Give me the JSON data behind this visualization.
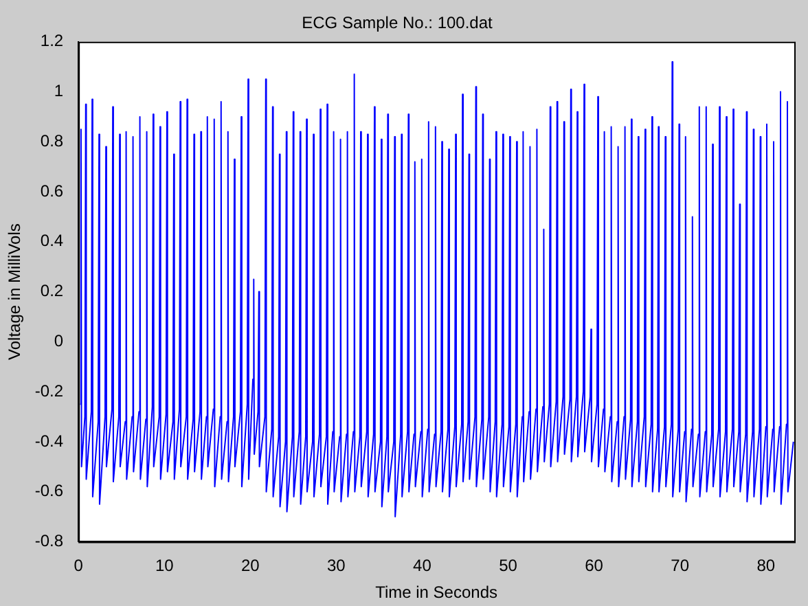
{
  "chart_data": {
    "type": "line",
    "title": "ECG Sample No.: 100.dat",
    "xlabel": "Time in Seconds",
    "ylabel": "Voltage in MilliVols",
    "xlim": [
      0,
      83.3
    ],
    "xticks": [
      0,
      10,
      20,
      30,
      40,
      50,
      60,
      70,
      80
    ],
    "ylim": [
      -0.8,
      1.2
    ],
    "yticks": [
      -0.8,
      -0.6,
      -0.4,
      -0.2,
      0,
      0.2,
      0.4,
      0.6,
      0.8,
      1,
      1.2
    ],
    "grid": false,
    "legend": false,
    "marker": "none",
    "line_style": "solid",
    "series": [
      {
        "color": "#0000ff",
        "x": [
          0.2,
          0.3,
          0.36,
          0.75,
          0.85,
          0.91,
          1.5,
          1.6,
          1.66,
          2.3,
          2.4,
          2.46,
          3.1,
          3.2,
          3.26,
          3.9,
          4.0,
          4.06,
          4.7,
          4.8,
          4.86,
          5.45,
          5.55,
          5.61,
          6.25,
          6.35,
          6.41,
          7.05,
          7.15,
          7.21,
          7.85,
          7.95,
          8.01,
          8.6,
          8.7,
          8.76,
          9.4,
          9.5,
          9.56,
          10.2,
          10.3,
          10.36,
          11.0,
          11.1,
          11.16,
          11.75,
          11.85,
          11.91,
          12.55,
          12.65,
          12.71,
          13.35,
          13.45,
          13.51,
          14.15,
          14.25,
          14.31,
          14.9,
          15.0,
          15.06,
          15.7,
          15.8,
          15.86,
          16.5,
          16.6,
          16.66,
          17.3,
          17.4,
          17.46,
          18.05,
          18.15,
          18.21,
          18.85,
          18.95,
          19.01,
          19.65,
          19.75,
          19.81,
          20.3,
          20.4,
          20.46,
          20.9,
          21.0,
          21.06,
          21.7,
          21.8,
          21.86,
          22.5,
          22.6,
          22.66,
          23.3,
          23.4,
          23.46,
          24.1,
          24.2,
          24.26,
          24.9,
          25.0,
          25.06,
          25.7,
          25.8,
          25.86,
          26.45,
          26.55,
          26.61,
          27.25,
          27.35,
          27.41,
          28.05,
          28.15,
          28.21,
          28.85,
          28.95,
          29.01,
          29.6,
          29.7,
          29.76,
          30.4,
          30.5,
          30.56,
          31.2,
          31.3,
          31.36,
          32.0,
          32.1,
          32.16,
          32.75,
          32.85,
          32.91,
          33.55,
          33.65,
          33.71,
          34.35,
          34.45,
          34.51,
          35.15,
          35.25,
          35.31,
          35.9,
          36.0,
          36.06,
          36.7,
          36.8,
          36.86,
          37.5,
          37.6,
          37.66,
          38.3,
          38.4,
          38.46,
          39.05,
          39.15,
          39.21,
          39.85,
          39.95,
          40.01,
          40.65,
          40.75,
          40.81,
          41.45,
          41.55,
          41.61,
          42.2,
          42.3,
          42.36,
          43.0,
          43.1,
          43.16,
          43.8,
          43.9,
          43.96,
          44.6,
          44.7,
          44.76,
          45.35,
          45.45,
          45.51,
          46.15,
          46.25,
          46.31,
          46.95,
          47.05,
          47.11,
          47.75,
          47.85,
          47.91,
          48.5,
          48.6,
          48.66,
          49.3,
          49.4,
          49.46,
          50.1,
          50.2,
          50.26,
          50.9,
          51.0,
          51.06,
          51.65,
          51.75,
          51.81,
          52.45,
          52.55,
          52.61,
          53.25,
          53.35,
          53.41,
          54.05,
          54.15,
          54.21,
          54.8,
          54.9,
          54.96,
          55.6,
          55.7,
          55.76,
          56.4,
          56.5,
          56.56,
          57.2,
          57.3,
          57.36,
          57.95,
          58.05,
          58.11,
          58.75,
          58.85,
          58.91,
          59.55,
          59.65,
          59.71,
          60.35,
          60.45,
          60.51,
          61.1,
          61.2,
          61.26,
          61.9,
          62.0,
          62.06,
          62.7,
          62.8,
          62.86,
          63.5,
          63.6,
          63.66,
          64.25,
          64.35,
          64.41,
          65.05,
          65.15,
          65.21,
          65.85,
          65.95,
          66.01,
          66.65,
          66.75,
          66.81,
          67.4,
          67.5,
          67.56,
          68.2,
          68.3,
          68.36,
          69.0,
          69.1,
          69.16,
          69.8,
          69.9,
          69.96,
          70.55,
          70.65,
          70.71,
          71.35,
          71.45,
          71.51,
          72.15,
          72.25,
          72.31,
          72.95,
          73.05,
          73.11,
          73.7,
          73.8,
          73.86,
          74.5,
          74.6,
          74.66,
          75.3,
          75.4,
          75.46,
          76.1,
          76.2,
          76.26,
          76.85,
          76.95,
          77.01,
          77.65,
          77.75,
          77.81,
          78.45,
          78.55,
          78.61,
          79.25,
          79.35,
          79.41,
          80.0,
          80.1,
          80.16,
          80.8,
          80.9,
          80.96,
          81.6,
          81.7,
          81.76,
          82.4,
          82.5,
          82.56,
          83.2
        ],
        "values": [
          -0.25,
          0.85,
          -0.5,
          -0.3,
          0.95,
          -0.55,
          -0.28,
          0.97,
          -0.62,
          -0.32,
          0.83,
          -0.65,
          -0.3,
          0.78,
          -0.5,
          -0.27,
          0.94,
          -0.56,
          -0.3,
          0.83,
          -0.5,
          -0.32,
          0.84,
          -0.55,
          -0.3,
          0.82,
          -0.52,
          -0.28,
          0.9,
          -0.55,
          -0.31,
          0.84,
          -0.58,
          -0.26,
          0.91,
          -0.5,
          -0.3,
          0.86,
          -0.55,
          -0.29,
          0.92,
          -0.52,
          -0.32,
          0.75,
          -0.55,
          -0.27,
          0.96,
          -0.5,
          -0.3,
          0.97,
          -0.55,
          -0.31,
          0.83,
          -0.52,
          -0.28,
          0.84,
          -0.55,
          -0.3,
          0.9,
          -0.5,
          -0.27,
          0.89,
          -0.58,
          -0.3,
          0.96,
          -0.55,
          -0.32,
          0.84,
          -0.56,
          -0.3,
          0.73,
          -0.5,
          -0.28,
          0.9,
          -0.58,
          -0.25,
          1.05,
          -0.55,
          -0.15,
          0.25,
          -0.45,
          -0.28,
          0.2,
          -0.5,
          -0.3,
          1.05,
          -0.6,
          -0.35,
          0.94,
          -0.62,
          -0.38,
          0.75,
          -0.66,
          -0.4,
          0.84,
          -0.68,
          -0.38,
          0.92,
          -0.62,
          -0.36,
          0.84,
          -0.65,
          -0.38,
          0.89,
          -0.6,
          -0.4,
          0.83,
          -0.62,
          -0.37,
          0.93,
          -0.58,
          -0.38,
          0.95,
          -0.65,
          -0.36,
          0.84,
          -0.6,
          -0.38,
          0.81,
          -0.64,
          -0.37,
          0.84,
          -0.62,
          -0.36,
          1.07,
          -0.6,
          -0.38,
          0.84,
          -0.58,
          -0.36,
          0.83,
          -0.62,
          -0.37,
          0.94,
          -0.6,
          -0.4,
          0.81,
          -0.66,
          -0.38,
          0.91,
          -0.6,
          -0.4,
          0.82,
          -0.7,
          -0.37,
          0.83,
          -0.62,
          -0.36,
          0.91,
          -0.6,
          -0.37,
          0.72,
          -0.58,
          -0.36,
          0.73,
          -0.62,
          -0.35,
          0.88,
          -0.6,
          -0.37,
          0.86,
          -0.58,
          -0.36,
          0.8,
          -0.6,
          -0.35,
          0.77,
          -0.62,
          -0.34,
          0.83,
          -0.58,
          -0.33,
          0.99,
          -0.56,
          -0.32,
          0.75,
          -0.55,
          -0.3,
          1.02,
          -0.58,
          -0.31,
          0.91,
          -0.55,
          -0.3,
          0.73,
          -0.6,
          -0.32,
          0.84,
          -0.62,
          -0.33,
          0.83,
          -0.58,
          -0.34,
          0.82,
          -0.6,
          -0.33,
          0.8,
          -0.62,
          -0.3,
          0.84,
          -0.56,
          -0.28,
          0.78,
          -0.55,
          -0.27,
          0.85,
          -0.52,
          -0.26,
          0.45,
          -0.48,
          -0.25,
          0.94,
          -0.5,
          -0.24,
          0.96,
          -0.48,
          -0.22,
          0.88,
          -0.45,
          -0.23,
          1.01,
          -0.48,
          -0.22,
          0.92,
          -0.46,
          -0.2,
          1.03,
          -0.44,
          -0.22,
          0.05,
          -0.48,
          -0.25,
          0.98,
          -0.5,
          -0.27,
          0.84,
          -0.52,
          -0.3,
          0.86,
          -0.56,
          -0.32,
          0.78,
          -0.58,
          -0.3,
          0.86,
          -0.55,
          -0.31,
          0.89,
          -0.58,
          -0.32,
          0.82,
          -0.56,
          -0.3,
          0.85,
          -0.58,
          -0.33,
          0.9,
          -0.6,
          -0.35,
          0.86,
          -0.6,
          -0.34,
          0.82,
          -0.58,
          -0.33,
          1.12,
          -0.62,
          -0.35,
          0.87,
          -0.6,
          -0.36,
          0.82,
          -0.64,
          -0.35,
          0.5,
          -0.58,
          -0.37,
          0.94,
          -0.62,
          -0.36,
          0.94,
          -0.6,
          -0.37,
          0.79,
          -0.58,
          -0.35,
          0.94,
          -0.62,
          -0.36,
          0.9,
          -0.6,
          -0.35,
          0.93,
          -0.58,
          -0.36,
          0.55,
          -0.6,
          -0.37,
          0.92,
          -0.64,
          -0.36,
          0.85,
          -0.62,
          -0.35,
          0.82,
          -0.65,
          -0.34,
          0.87,
          -0.62,
          -0.35,
          0.8,
          -0.6,
          -0.34,
          1.0,
          -0.65,
          -0.33,
          0.96,
          -0.6,
          -0.4
        ]
      }
    ]
  }
}
